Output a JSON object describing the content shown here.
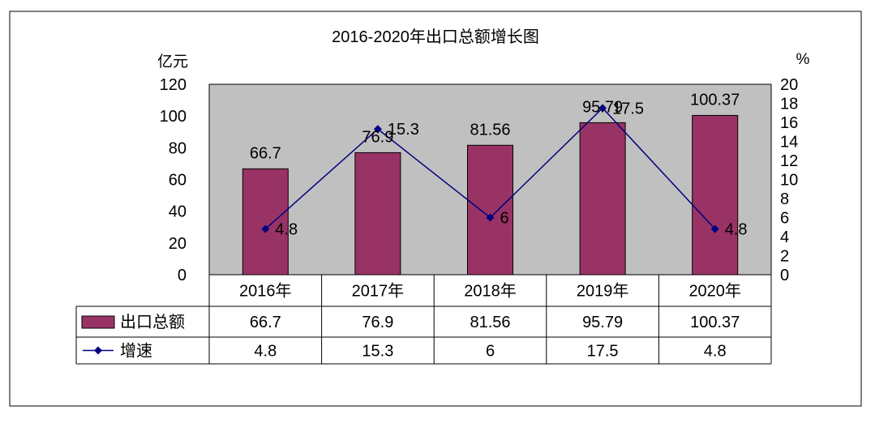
{
  "chart_data": {
    "type": "bar",
    "title": "2016-2020年出口总额增长图",
    "left_unit": "亿元",
    "right_unit": "%",
    "categories": [
      "2016年",
      "2017年",
      "2018年",
      "2019年",
      "2020年"
    ],
    "series": [
      {
        "name": "出口总额",
        "type": "bar",
        "axis": "left",
        "values": [
          66.7,
          76.9,
          81.56,
          95.79,
          100.37
        ],
        "color": "#993366"
      },
      {
        "name": "增速",
        "type": "line",
        "axis": "right",
        "values": [
          4.8,
          15.3,
          6,
          17.5,
          4.8
        ],
        "color": "#000080"
      }
    ],
    "y_left": {
      "min": 0,
      "max": 120,
      "step": 20
    },
    "y_right": {
      "min": 0,
      "max": 20,
      "step": 2
    },
    "plot_background": "#c0c0c0",
    "grid": false,
    "legend": "data-table-below"
  }
}
